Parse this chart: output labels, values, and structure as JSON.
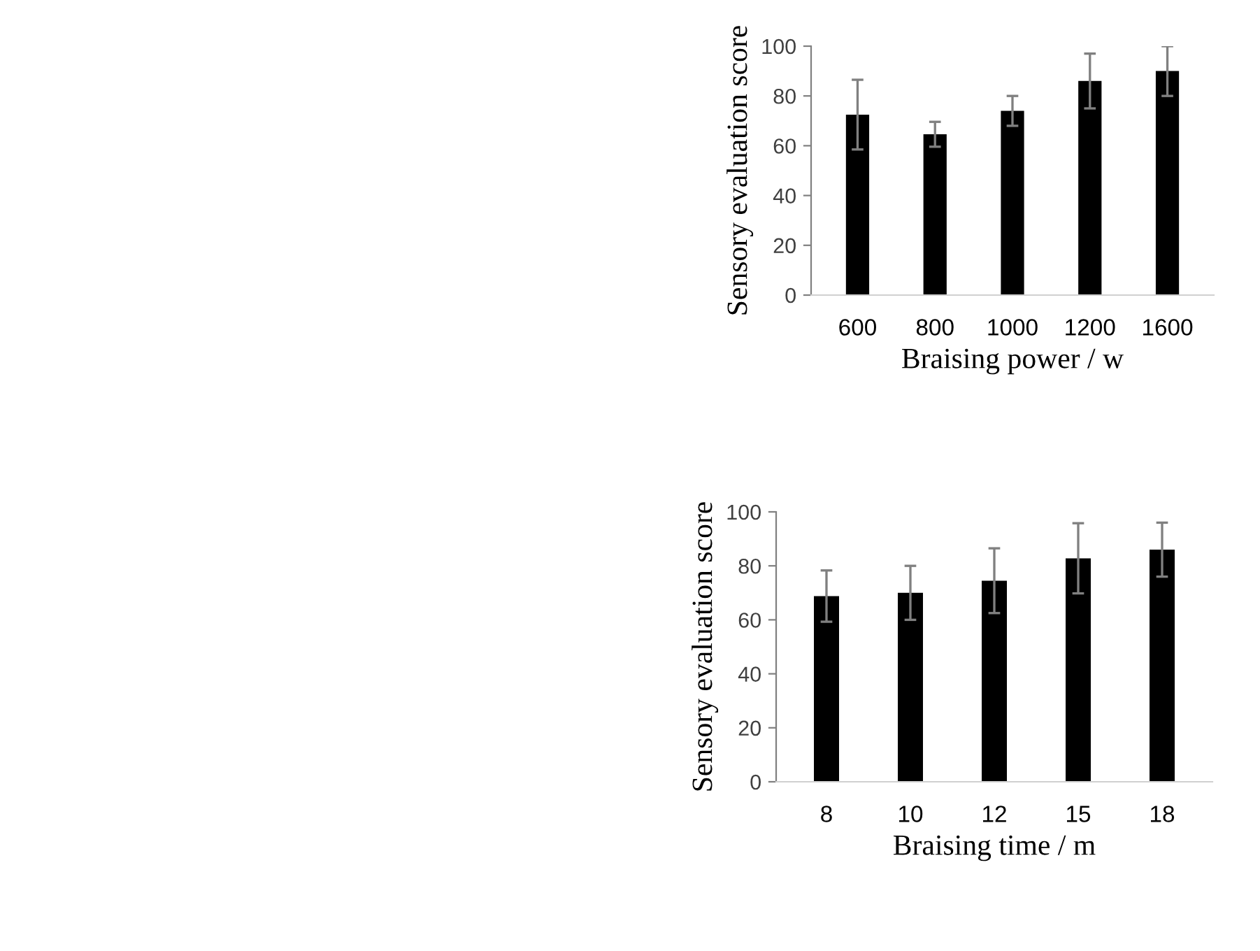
{
  "chart_data": [
    {
      "type": "bar",
      "xlabel": "Braising power / w",
      "ylabel": "Sensory evaluation score",
      "categories": [
        "600",
        "800",
        "1000",
        "1200",
        "1600"
      ],
      "color": "#000000",
      "values": [
        72.5,
        64.6,
        74,
        86,
        90
      ],
      "errors": [
        14,
        5,
        6,
        11,
        10
      ],
      "ylim": [
        0,
        100
      ],
      "yticks": [
        0,
        20,
        40,
        60,
        80,
        100
      ],
      "grid": false
    },
    {
      "type": "bar",
      "xlabel": "Braising time / m",
      "ylabel": "Sensory evaluation score",
      "categories": [
        "8",
        "10",
        "12",
        "15",
        "18"
      ],
      "color": "#000000",
      "values": [
        68.8,
        70,
        74.5,
        82.8,
        86
      ],
      "errors": [
        9.5,
        10,
        12,
        13,
        10
      ],
      "ylim": [
        0,
        100
      ],
      "yticks": [
        0,
        20,
        40,
        60,
        80,
        100
      ],
      "grid": false
    }
  ]
}
